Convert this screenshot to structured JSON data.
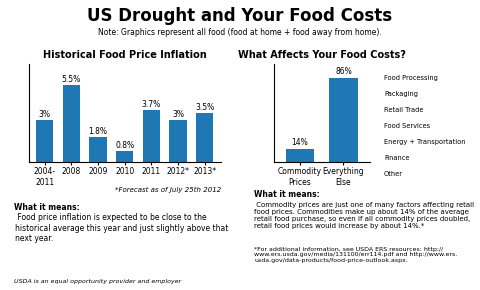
{
  "title": "US Drought and Your Food Costs",
  "subtitle": "Note: Graphics represent all food (food at home + food away from home).",
  "annotations": [
    "USDA is an equal opportunity provider and employer"
  ],
  "chart_data": [
    {
      "type": "bar",
      "title": "Historical Food Price Inflation",
      "categories": [
        "2004-\n2011",
        "2008",
        "2009",
        "2010",
        "2011",
        "2012*",
        "2013*"
      ],
      "values": [
        3.0,
        5.5,
        1.8,
        0.8,
        3.7,
        3.0,
        3.5
      ],
      "value_labels": [
        "3%",
        "5.5%",
        "1.8%",
        "0.8%",
        "3.7%",
        "3%",
        "3.5%"
      ],
      "data_labels": true,
      "ylim": [
        0,
        7.0
      ],
      "tick_labels": "x",
      "grid": false,
      "annotations": [
        "*Forecast as of July 25th 2012"
      ],
      "caption": {
        "heading": "What it means:",
        "body": " Food price inflation is expected to be close to the historical average this year and just slightly above that next year."
      }
    },
    {
      "type": "bar",
      "title": "What Affects Your Food Costs?",
      "categories": [
        "Commodity\nPrices",
        "Everything\nElse"
      ],
      "values": [
        14,
        86
      ],
      "value_labels": [
        "14%",
        "86%"
      ],
      "data_labels": true,
      "ylim": [
        0,
        100
      ],
      "tick_labels": "x",
      "grid": false,
      "annotations": [
        "Food Processing",
        "Packaging",
        "Retail Trade",
        "Food Services",
        "Energy + Transportation",
        "Finance",
        "Other"
      ],
      "caption": {
        "heading": "What it means:",
        "body": " Commodity prices are just one of many factors affecting retail food prices. Commodities make up about 14% of the average retail food purchase, so even if all commodity prices doubled, retail food prices would increase by about 14%.*",
        "footnote": "*For additional information, see USDA ERS resources: http://\nwww.ers.usda.gov/media/131100/err114.pdf and http://www.ers.\nusda.gov/data-products/food-price-outlook.aspx."
      }
    }
  ]
}
